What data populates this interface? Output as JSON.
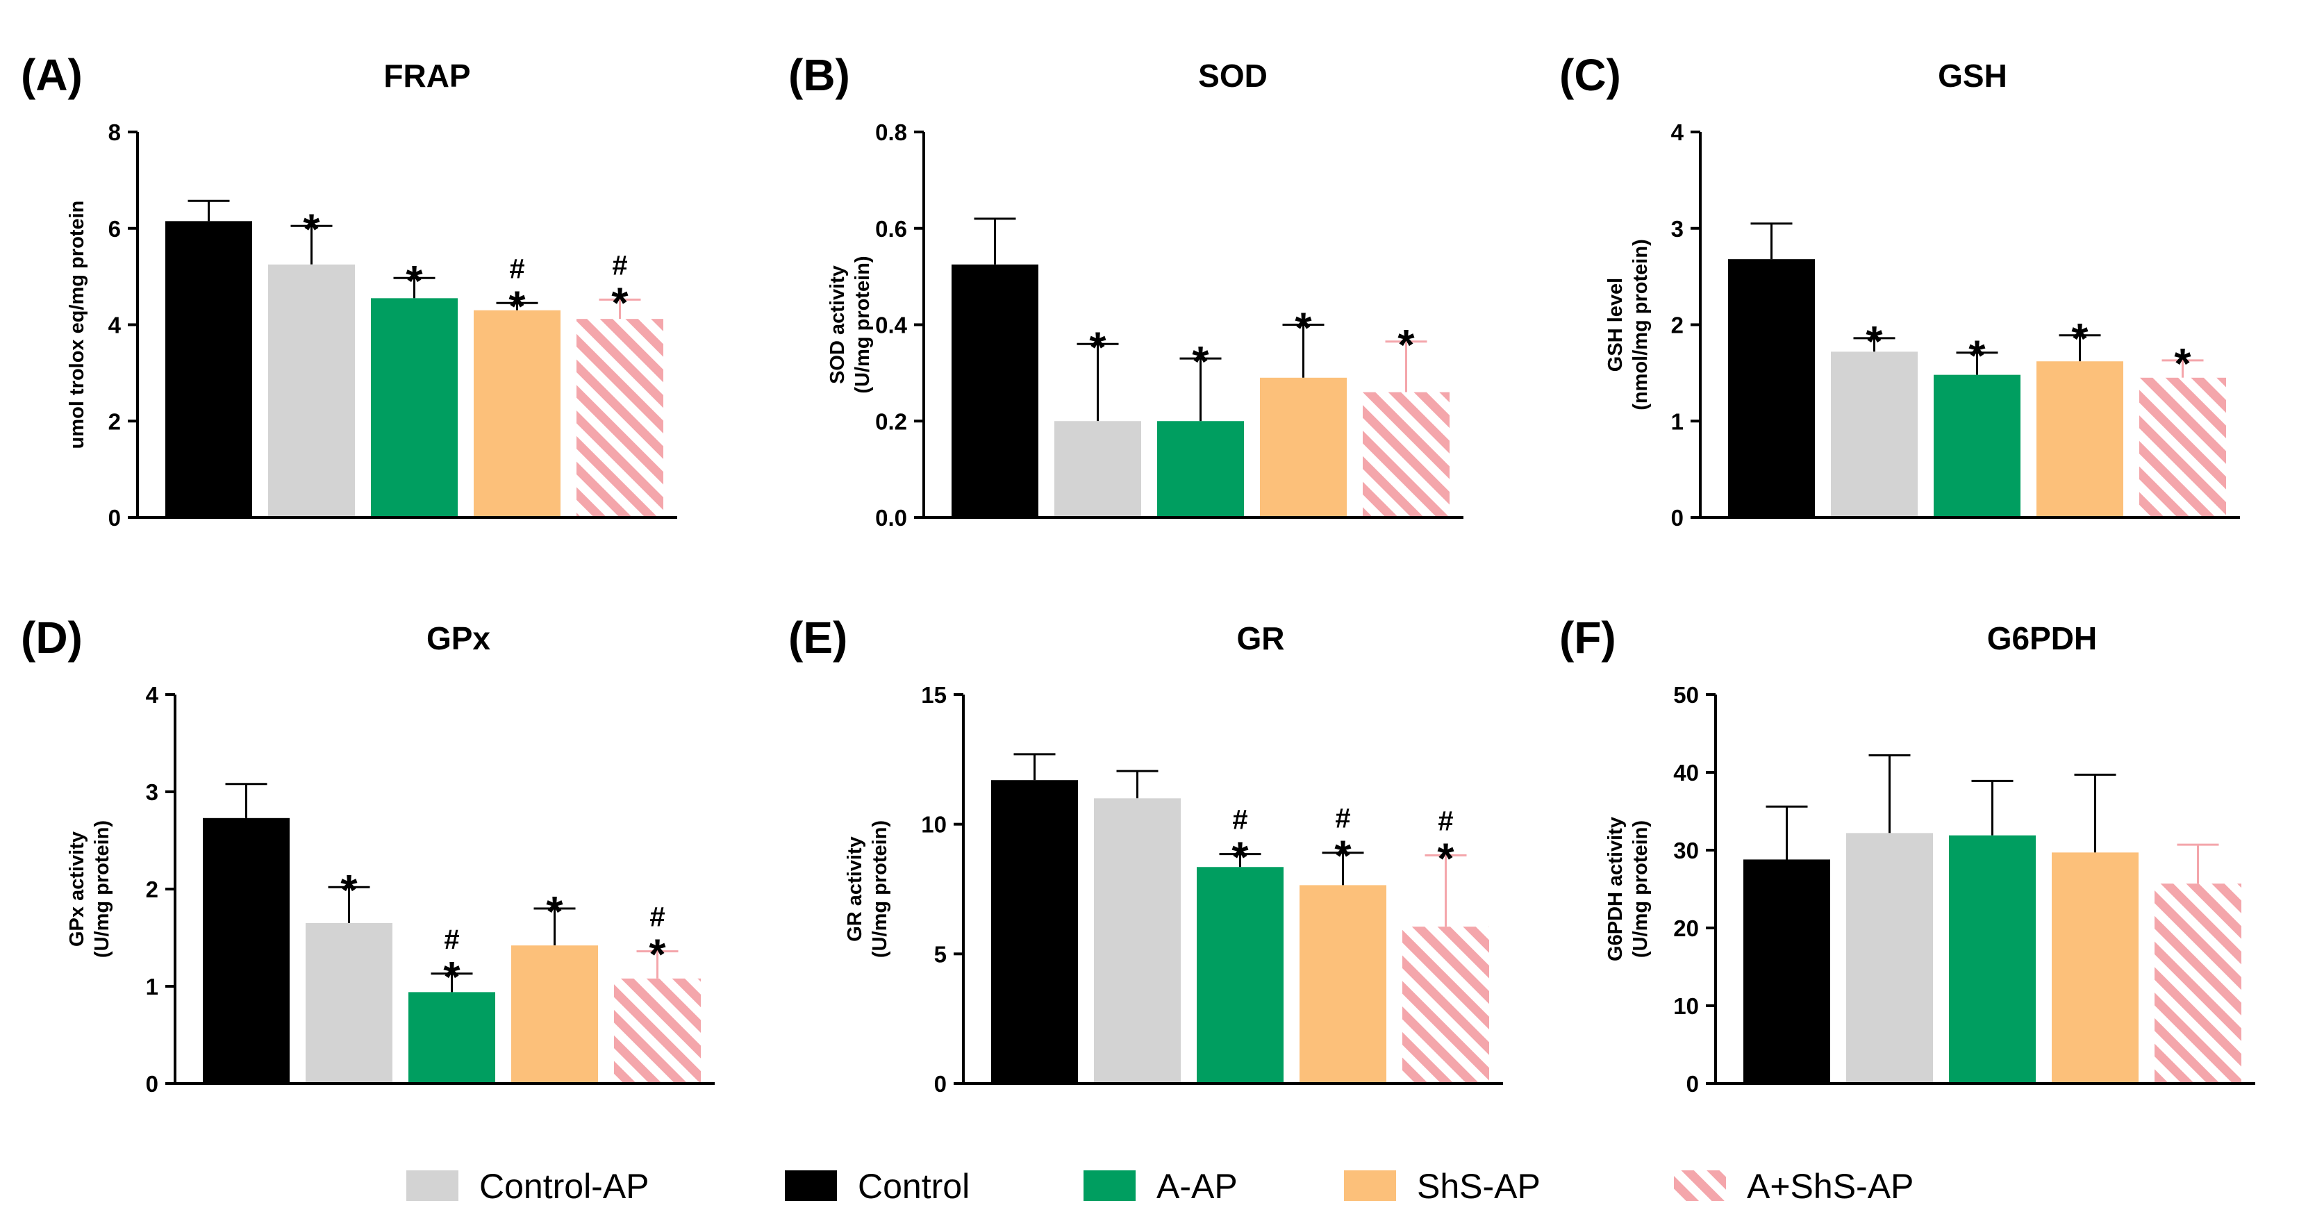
{
  "legend": [
    {
      "key": "control_ap",
      "label": "Control-AP"
    },
    {
      "key": "control",
      "label": "Control"
    },
    {
      "key": "a_ap",
      "label": "A-AP"
    },
    {
      "key": "shs_ap",
      "label": "ShS-AP"
    },
    {
      "key": "a_shs_ap",
      "label": "A+ShS-AP"
    }
  ],
  "groups": [
    {
      "key": "control",
      "label": "Control",
      "color": "#000000",
      "pattern": "solid"
    },
    {
      "key": "control_ap",
      "label": "Control-AP",
      "color": "#d3d3d3",
      "pattern": "solid"
    },
    {
      "key": "a_ap",
      "label": "A-AP",
      "color": "#009e60",
      "pattern": "solid"
    },
    {
      "key": "shs_ap",
      "label": "ShS-AP",
      "color": "#fcc07a",
      "pattern": "solid"
    },
    {
      "key": "a_shs_ap",
      "label": "A+ShS-AP",
      "color": "#f4a6ab",
      "pattern": "diagonal-stripes"
    }
  ],
  "chart_data": [
    {
      "id": "A",
      "letter": "(A)",
      "type": "bar",
      "title": "FRAP",
      "ylabel": [
        "umol trolox eq/mg protein"
      ],
      "ylim": [
        0,
        8
      ],
      "yticks": [
        0,
        2,
        4,
        6,
        8
      ],
      "categories": [
        "Control",
        "Control-AP",
        "A-AP",
        "ShS-AP",
        "A+ShS-AP"
      ],
      "values": [
        6.15,
        5.25,
        4.55,
        4.3,
        4.12
      ],
      "errors": [
        0.42,
        0.8,
        0.42,
        0.15,
        0.4
      ],
      "star": [
        false,
        true,
        true,
        true,
        true
      ],
      "hash": [
        false,
        false,
        false,
        true,
        true
      ]
    },
    {
      "id": "B",
      "letter": "(B)",
      "type": "bar",
      "title": "SOD",
      "ylabel": [
        "SOD activity",
        "(U/mg protein)"
      ],
      "ylim": [
        0,
        0.8
      ],
      "yticks": [
        "0.0",
        "0.2",
        "0.4",
        "0.6",
        "0.8"
      ],
      "categories": [
        "Control",
        "Control-AP",
        "A-AP",
        "ShS-AP",
        "A+ShS-AP"
      ],
      "values": [
        0.525,
        0.2,
        0.2,
        0.29,
        0.26
      ],
      "errors": [
        0.095,
        0.16,
        0.13,
        0.11,
        0.105
      ],
      "star": [
        false,
        true,
        true,
        true,
        true
      ],
      "hash": [
        false,
        false,
        false,
        false,
        false
      ]
    },
    {
      "id": "C",
      "letter": "(C)",
      "type": "bar",
      "title": "GSH",
      "ylabel": [
        "GSH level",
        "(nmol/mg protein)"
      ],
      "ylim": [
        0,
        4
      ],
      "yticks": [
        0,
        1,
        2,
        3,
        4
      ],
      "categories": [
        "Control",
        "Control-AP",
        "A-AP",
        "ShS-AP",
        "A+ShS-AP"
      ],
      "values": [
        2.68,
        1.72,
        1.48,
        1.62,
        1.45
      ],
      "errors": [
        0.37,
        0.14,
        0.23,
        0.27,
        0.18
      ],
      "star": [
        false,
        true,
        true,
        true,
        true
      ],
      "hash": [
        false,
        false,
        false,
        false,
        false
      ]
    },
    {
      "id": "D",
      "letter": "(D)",
      "type": "bar",
      "title": "GPx",
      "ylabel": [
        "GPx activity",
        "(U/mg protein)"
      ],
      "ylim": [
        0,
        4
      ],
      "yticks": [
        0,
        1,
        2,
        3,
        4
      ],
      "categories": [
        "Control",
        "Control-AP",
        "A-AP",
        "ShS-AP",
        "A+ShS-AP"
      ],
      "values": [
        2.73,
        1.65,
        0.94,
        1.42,
        1.08
      ],
      "errors": [
        0.35,
        0.37,
        0.19,
        0.38,
        0.28
      ],
      "star": [
        false,
        true,
        true,
        true,
        true
      ],
      "hash": [
        false,
        false,
        true,
        false,
        true
      ]
    },
    {
      "id": "E",
      "letter": "(E)",
      "type": "bar",
      "title": "GR",
      "ylabel": [
        "GR activity",
        "(U/mg protein)"
      ],
      "ylim": [
        0,
        15
      ],
      "yticks": [
        0,
        5,
        10,
        15
      ],
      "categories": [
        "Control",
        "Control-AP",
        "A-AP",
        "ShS-AP",
        "A+ShS-AP"
      ],
      "values": [
        11.7,
        11.0,
        8.35,
        7.65,
        6.05
      ],
      "errors": [
        1.0,
        1.05,
        0.5,
        1.25,
        2.75
      ],
      "star": [
        false,
        false,
        true,
        true,
        true
      ],
      "hash": [
        false,
        false,
        true,
        true,
        true
      ]
    },
    {
      "id": "F",
      "letter": "(F)",
      "type": "bar",
      "title": "G6PDH",
      "ylabel": [
        "G6PDH activity",
        "(U/mg protein)"
      ],
      "ylim": [
        0,
        50
      ],
      "yticks": [
        0,
        10,
        20,
        30,
        40,
        50
      ],
      "categories": [
        "Control",
        "Control-AP",
        "A-AP",
        "ShS-AP",
        "A+ShS-AP"
      ],
      "values": [
        28.8,
        32.2,
        31.9,
        29.7,
        25.7
      ],
      "errors": [
        6.8,
        10.0,
        7.0,
        10.0,
        5.0
      ],
      "star": [
        false,
        false,
        false,
        false,
        false
      ],
      "hash": [
        false,
        false,
        false,
        false,
        false
      ]
    }
  ]
}
